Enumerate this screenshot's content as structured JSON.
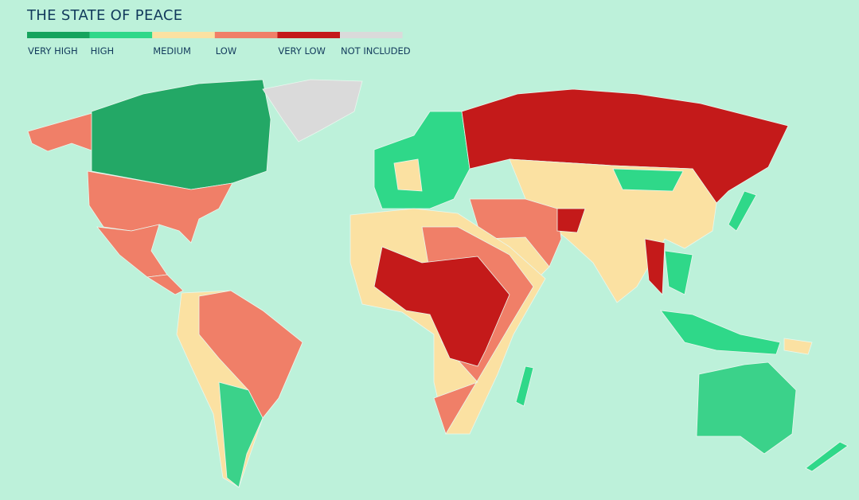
{
  "title": "THE STATE OF PEACE",
  "legend": [
    {
      "label": "VERY HIGH",
      "color": "#16a35d"
    },
    {
      "label": "HIGH",
      "color": "#2fd889"
    },
    {
      "label": "MEDIUM",
      "color": "#fbe1a2"
    },
    {
      "label": "LOW",
      "color": "#f07f68"
    },
    {
      "label": "VERY LOW",
      "color": "#c41a1a"
    },
    {
      "label": "NOT INCLUDED",
      "color": "#dadada"
    }
  ]
}
